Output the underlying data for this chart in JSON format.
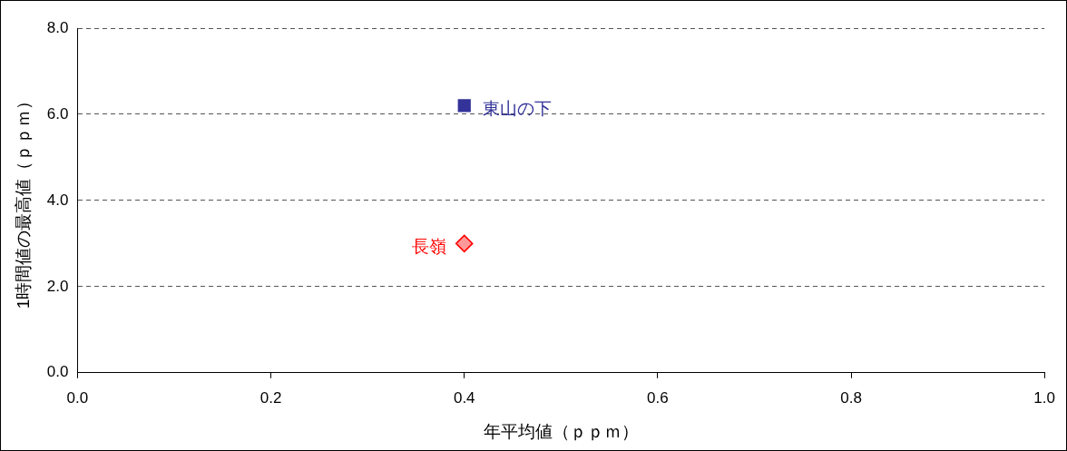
{
  "chart_data": {
    "type": "scatter",
    "xlabel": "年平均値（ｐｐｍ）",
    "ylabel": "1時間値の最高値（ｐｐｍ）",
    "xlim": [
      0,
      1
    ],
    "xticks": [
      {
        "value": 0,
        "label": "0.0"
      },
      {
        "value": 0.2,
        "label": "0.2"
      },
      {
        "value": 0.4,
        "label": "0.4"
      },
      {
        "value": 0.6,
        "label": "0.6"
      },
      {
        "value": 0.8,
        "label": "0.8"
      },
      {
        "value": 1,
        "label": "1.0"
      }
    ],
    "ylim": [
      0,
      8
    ],
    "yticks": [
      {
        "value": 0,
        "label": "0.0"
      },
      {
        "value": 2,
        "label": "2.0"
      },
      {
        "value": 4,
        "label": "4.0"
      },
      {
        "value": 6,
        "label": "6.0"
      },
      {
        "value": 8,
        "label": "8.0"
      }
    ],
    "grid": "y",
    "line_style": "dashed",
    "legend": false,
    "series": [
      {
        "name": "東山の下",
        "color": "#333399",
        "marker": "square",
        "x": [
          0.4
        ],
        "values": [
          6.2
        ]
      },
      {
        "name": "長嶺",
        "color": "#ff0000",
        "marker": "diamond",
        "x": [
          0.4
        ],
        "values": [
          3.0
        ]
      }
    ]
  }
}
